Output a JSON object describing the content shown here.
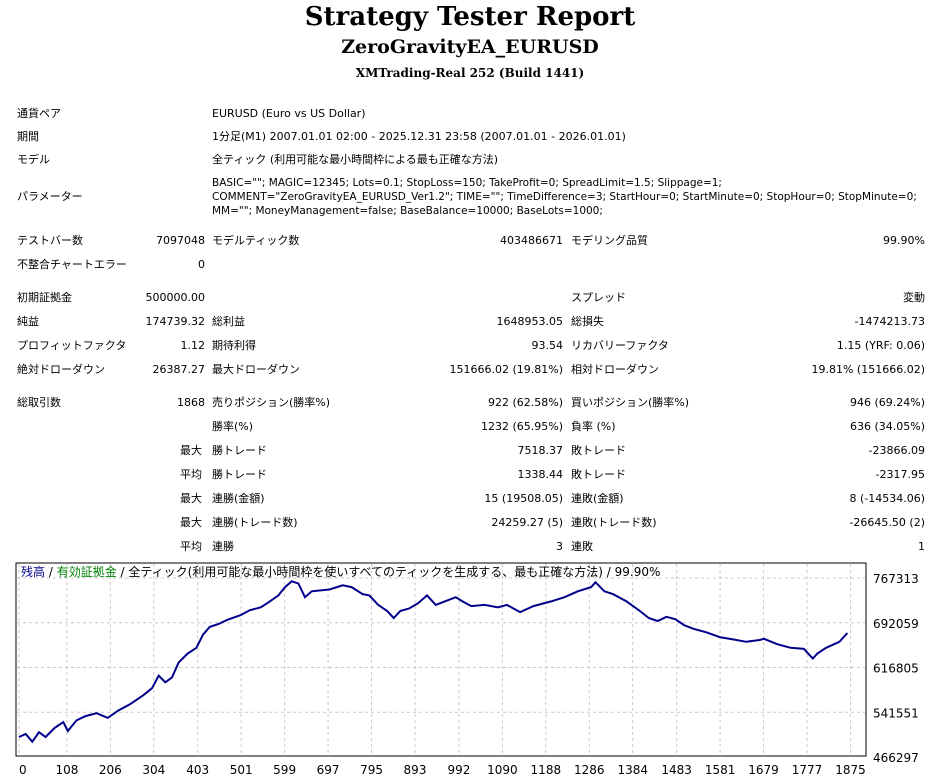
{
  "header": {
    "title": "Strategy Tester Report",
    "ea": "ZeroGravityEA_EURUSD",
    "server": "XMTrading-Real 252 (Build 1441)"
  },
  "info": [
    {
      "label": "通貨ペア",
      "value": "EURUSD (Euro vs US Dollar)"
    },
    {
      "label": "期間",
      "value": "1分足(M1) 2007.01.01 02:00 - 2025.12.31 23:58 (2007.01.01 - 2026.01.01)"
    },
    {
      "label": "モデル",
      "value": "全ティック (利用可能な最小時間枠による最も正確な方法)"
    }
  ],
  "params": {
    "label": "パラメーター",
    "lines": [
      "BASIC=\"\"; MAGIC=12345; Lots=0.1; StopLoss=150; TakeProfit=0; SpreadLimit=1.5; Slippage=1;",
      "COMMENT=\"ZeroGravityEA_EURUSD_Ver1.2\"; TIME=\"\"; TimeDifference=3; StartHour=0; StartMinute=0; StopHour=0; StopMinute=0;",
      "MM=\"\"; MoneyManagement=false; BaseBalance=10000; BaseLots=1000;"
    ]
  },
  "rows": [
    [
      "テストバー数",
      "7097048",
      "モデルティック数",
      "403486671",
      "モデリング品質",
      "99.90%"
    ],
    [
      "不整合チャートエラー",
      "0",
      "",
      "",
      "",
      ""
    ],
    [
      "初期証拠金",
      "500000.00",
      "",
      "",
      "スプレッド",
      "変動"
    ],
    [
      "純益",
      "174739.32",
      "総利益",
      "1648953.05",
      "総損失",
      "-1474213.73"
    ],
    [
      "プロフィットファクタ",
      "1.12",
      "期待利得",
      "93.54",
      "リカバリーファクタ",
      "1.15 (YRF: 0.06)"
    ],
    [
      "絶対ドローダウン",
      "26387.27",
      "最大ドローダウン",
      "151666.02 (19.81%)",
      "相対ドローダウン",
      "19.81% (151666.02)"
    ],
    [
      "総取引数",
      "1868",
      "売りポジション(勝率%)",
      "922 (62.58%)",
      "買いポジション(勝率%)",
      "946 (69.24%)"
    ],
    [
      "",
      "",
      "勝率(%)",
      "1232 (65.95%)",
      "負率 (%)",
      "636 (34.05%)"
    ],
    [
      "",
      "最大",
      "勝トレード",
      "7518.37",
      "敗トレード",
      "-23866.09"
    ],
    [
      "",
      "平均",
      "勝トレード",
      "1338.44",
      "敗トレード",
      "-2317.95"
    ],
    [
      "",
      "最大",
      "連勝(金額)",
      "15 (19508.05)",
      "連敗(金額)",
      "8 (-14534.06)"
    ],
    [
      "",
      "最大",
      "連勝(トレード数)",
      "24259.27 (5)",
      "連敗(トレード数)",
      "-26645.50 (2)"
    ],
    [
      "",
      "平均",
      "連勝",
      "3",
      "連敗",
      "1"
    ]
  ],
  "chart_data": {
    "type": "line",
    "legend": {
      "balance": "残高",
      "sep": " / ",
      "equity": "有効証拠金",
      "rest": " / 全ティック(利用可能な最小時間枠を使いすべてのティックを生成する、最も正確な方法) / 99.90%"
    },
    "colors": {
      "balance": "#00008b",
      "equity": "#008000",
      "grid": "#c8c8c8"
    },
    "xticks": [
      0,
      108,
      206,
      304,
      403,
      501,
      599,
      697,
      795,
      893,
      992,
      1090,
      1188,
      1286,
      1384,
      1483,
      1581,
      1679,
      1777,
      1875
    ],
    "yticks": [
      767313,
      692059,
      616805,
      541551,
      466297
    ],
    "xlim": [
      0,
      1910
    ],
    "ylim": [
      466297,
      772000
    ],
    "x": [
      0,
      15,
      30,
      45,
      60,
      80,
      100,
      110,
      130,
      150,
      175,
      200,
      225,
      250,
      280,
      300,
      315,
      330,
      345,
      360,
      380,
      400,
      415,
      430,
      450,
      470,
      500,
      520,
      545,
      560,
      585,
      600,
      615,
      630,
      645,
      660,
      700,
      730,
      750,
      775,
      790,
      810,
      830,
      845,
      860,
      880,
      900,
      920,
      940,
      960,
      985,
      1000,
      1020,
      1050,
      1080,
      1100,
      1130,
      1160,
      1200,
      1230,
      1260,
      1290,
      1300,
      1320,
      1340,
      1370,
      1400,
      1420,
      1440,
      1460,
      1480,
      1500,
      1520,
      1550,
      1580,
      1610,
      1640,
      1670,
      1680,
      1710,
      1740,
      1770,
      1790,
      1800,
      1820,
      1850,
      1868
    ],
    "y": [
      500000,
      505000,
      492000,
      508000,
      500000,
      515000,
      525000,
      510000,
      528000,
      535000,
      540000,
      532000,
      545000,
      555000,
      570000,
      582000,
      603000,
      592000,
      600000,
      625000,
      640000,
      650000,
      672000,
      685000,
      690000,
      697000,
      705000,
      713000,
      718000,
      725000,
      738000,
      752000,
      762000,
      758000,
      735000,
      745000,
      748000,
      755000,
      752000,
      740000,
      738000,
      722000,
      712000,
      700000,
      712000,
      716000,
      725000,
      738000,
      722000,
      728000,
      735000,
      728000,
      720000,
      722000,
      718000,
      722000,
      710000,
      720000,
      728000,
      735000,
      745000,
      752000,
      760000,
      745000,
      740000,
      728000,
      712000,
      700000,
      695000,
      702000,
      698000,
      688000,
      682000,
      676000,
      668000,
      664000,
      660000,
      663000,
      665000,
      656000,
      650000,
      648000,
      632000,
      640000,
      650000,
      660000,
      674739
    ]
  }
}
